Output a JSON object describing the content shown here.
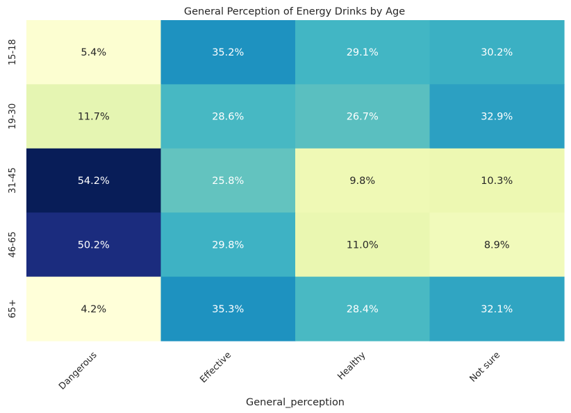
{
  "chart_data": {
    "type": "heatmap",
    "title": "General Perception of Energy Drinks by Age",
    "xlabel": "General_perception",
    "ylabel": "",
    "columns": [
      "Dangerous",
      "Effective",
      "Healthy",
      "Not sure"
    ],
    "rows": [
      "15-18",
      "19-30",
      "31-45",
      "46-65",
      "65+"
    ],
    "values": [
      [
        5.4,
        35.2,
        29.1,
        30.2
      ],
      [
        11.7,
        28.6,
        26.7,
        32.9
      ],
      [
        54.2,
        25.8,
        9.8,
        10.3
      ],
      [
        50.2,
        29.8,
        11.0,
        8.9
      ],
      [
        4.2,
        35.3,
        28.4,
        32.1
      ]
    ],
    "labels": [
      [
        "5.4%",
        "35.2%",
        "29.1%",
        "30.2%"
      ],
      [
        "11.7%",
        "28.6%",
        "26.7%",
        "32.9%"
      ],
      [
        "54.2%",
        "25.8%",
        "9.8%",
        "10.3%"
      ],
      [
        "50.2%",
        "29.8%",
        "11.0%",
        "8.9%"
      ],
      [
        "4.2%",
        "35.3%",
        "28.4%",
        "32.1%"
      ]
    ],
    "value_range": [
      4.2,
      54.2
    ],
    "colormap": "YlGnBu",
    "colorbar": false
  }
}
